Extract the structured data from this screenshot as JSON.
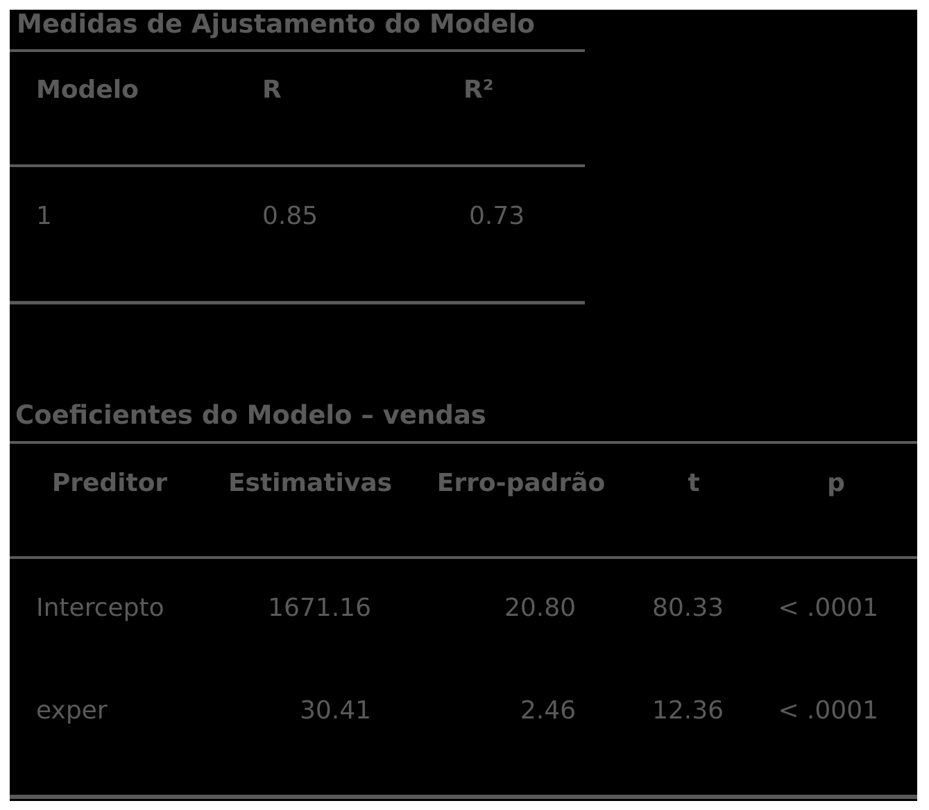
{
  "fit_table": {
    "title": "Medidas de Ajustamento do Modelo",
    "headers": [
      "Modelo",
      "R",
      "R²"
    ],
    "rows": [
      [
        "1",
        "0.85",
        "0.73"
      ]
    ]
  },
  "coef_table": {
    "title": "Coeficientes do Modelo – vendas",
    "headers": [
      "Preditor",
      "Estimativas",
      "Erro-padrão",
      "t",
      "p"
    ],
    "rows": [
      [
        "Intercepto",
        "1671.16",
        "20.80",
        "80.33",
        "< .0001"
      ],
      [
        "exper",
        "30.41",
        "2.46",
        "12.36",
        "< .0001"
      ]
    ]
  },
  "colors": {
    "background": "#000000",
    "text": "#5a5a5a"
  }
}
